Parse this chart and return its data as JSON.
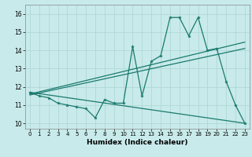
{
  "title": "",
  "xlabel": "Humidex (Indice chaleur)",
  "bg_color": "#c8eaea",
  "line_color": "#1a7a6e",
  "grid_color": "#b0d8d8",
  "xlim": [
    -0.5,
    23.5
  ],
  "ylim": [
    9.7,
    16.5
  ],
  "xticks": [
    0,
    1,
    2,
    3,
    4,
    5,
    6,
    7,
    8,
    9,
    10,
    11,
    12,
    13,
    14,
    15,
    16,
    17,
    18,
    19,
    20,
    21,
    22,
    23
  ],
  "yticks": [
    10,
    11,
    12,
    13,
    14,
    15,
    16
  ],
  "data_x": [
    0,
    1,
    2,
    3,
    4,
    5,
    6,
    7,
    8,
    9,
    10,
    11,
    12,
    13,
    14,
    15,
    16,
    17,
    18,
    19,
    20,
    21,
    22,
    23
  ],
  "data_y": [
    11.7,
    11.5,
    11.4,
    11.1,
    11.0,
    10.9,
    10.8,
    10.3,
    11.3,
    11.1,
    11.1,
    14.2,
    11.5,
    13.4,
    13.7,
    15.8,
    15.8,
    14.8,
    15.8,
    14.0,
    14.1,
    12.3,
    11.0,
    10.0
  ],
  "trend1_x": [
    0,
    23
  ],
  "trend1_y": [
    11.6,
    14.45
  ],
  "trend2_x": [
    0,
    23
  ],
  "trend2_y": [
    11.55,
    14.1
  ],
  "trend3_x": [
    0,
    23
  ],
  "trend3_y": [
    11.7,
    10.0
  ]
}
